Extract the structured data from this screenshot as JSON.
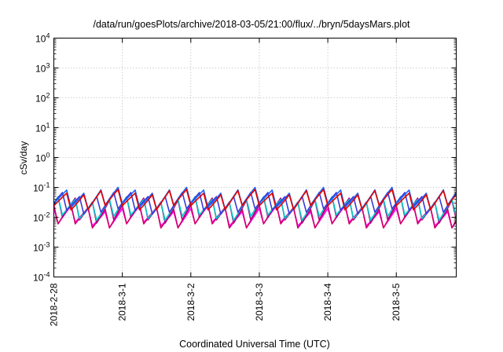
{
  "chart_data": {
    "type": "line",
    "title": "/data/run/goesPlots/archive/2018-03-05/21:00/flux/../bryn/5daysMars.plot",
    "xlabel": "Coordinated Universal Time (UTC)",
    "ylabel": "cSv/day",
    "xscale": "time",
    "yscale": "log",
    "xlim": [
      "2018-02-28T00:00",
      "2018-03-05T21:00"
    ],
    "ylim": [
      0.0001,
      10000
    ],
    "x_ticks": [
      "2018-2-28",
      "2018-3-1",
      "2018-3-2",
      "2018-3-3",
      "2018-3-4",
      "2018-3-5"
    ],
    "y_ticks": [
      {
        "base": "10",
        "exp": "-4"
      },
      {
        "base": "10",
        "exp": "-3"
      },
      {
        "base": "10",
        "exp": "-2"
      },
      {
        "base": "10",
        "exp": "-1"
      },
      {
        "base": "10",
        "exp": "0"
      },
      {
        "base": "10",
        "exp": "1"
      },
      {
        "base": "10",
        "exp": "2"
      },
      {
        "base": "10",
        "exp": "3"
      },
      {
        "base": "10",
        "exp": "4"
      }
    ],
    "grid": true,
    "legend": "none",
    "sampling_hours": 1.5,
    "series": [
      {
        "color": "#ff00ff",
        "low": 0.0045,
        "high": 0.024,
        "phase": 0.0
      },
      {
        "color": "#d0006a",
        "low": 0.0052,
        "high": 0.038,
        "phase": 0.15
      },
      {
        "color": "#b00080",
        "low": 0.0065,
        "high": 0.055,
        "phase": 0.3
      },
      {
        "color": "#00c8c8",
        "low": 0.011,
        "high": 0.07,
        "phase": 0.45
      },
      {
        "color": "#3a3ad8",
        "low": 0.015,
        "high": 0.085,
        "phase": 0.6
      },
      {
        "color": "#1e64ff",
        "low": 0.019,
        "high": 0.1,
        "phase": 0.75
      },
      {
        "color": "#e00000",
        "low": 0.022,
        "high": 0.11,
        "phase": 0.9
      }
    ]
  }
}
